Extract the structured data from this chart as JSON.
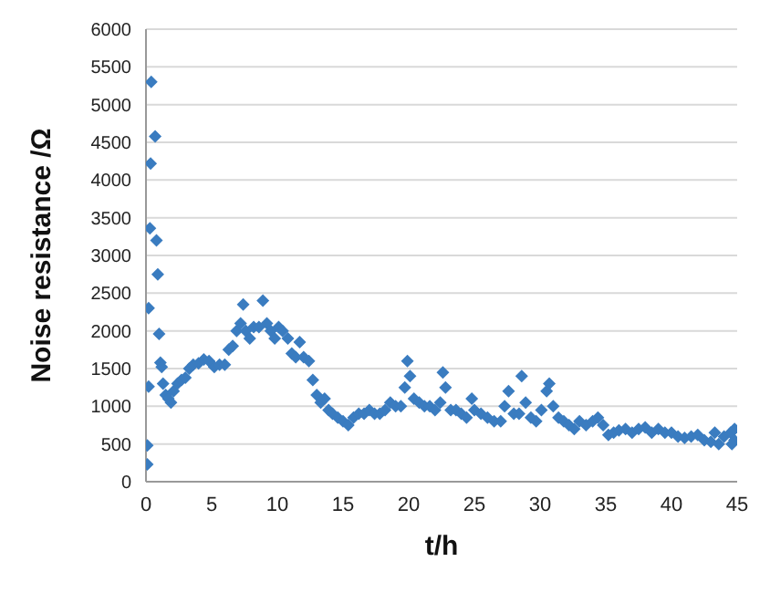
{
  "chart_data": {
    "type": "scatter",
    "xlabel": "t/h",
    "ylabel": "Noise resistance /Ω",
    "xlim": [
      0,
      45
    ],
    "xticks": [
      0,
      5,
      10,
      15,
      20,
      25,
      30,
      35,
      40,
      45
    ],
    "ylim": [
      0,
      6000
    ],
    "yticks": [
      0,
      500,
      1000,
      1500,
      2000,
      2500,
      3000,
      3500,
      4000,
      4500,
      5000,
      5500,
      6000
    ],
    "grid": "y",
    "marker": "diamond",
    "legend": false,
    "series": [
      {
        "color": "#3a7cc0",
        "x": [
          0.1,
          0.1,
          0.2,
          0.2,
          0.3,
          0.35,
          0.4,
          0.7,
          0.8,
          0.9,
          1.0,
          1.1,
          1.2,
          1.3,
          1.5,
          1.7,
          1.9,
          2.1,
          2.4,
          2.7,
          3.0,
          3.3,
          3.6,
          4.0,
          4.4,
          4.8,
          5.2,
          5.6,
          6.0,
          6.3,
          6.6,
          6.9,
          7.2,
          7.4,
          7.6,
          7.9,
          8.2,
          8.6,
          8.9,
          9.2,
          9.5,
          9.8,
          10.1,
          10.4,
          10.8,
          11.1,
          11.4,
          11.7,
          12.0,
          12.4,
          12.7,
          13.0,
          13.3,
          13.6,
          13.9,
          14.2,
          14.6,
          15.0,
          15.4,
          15.8,
          16.2,
          16.6,
          17.0,
          17.4,
          17.8,
          18.2,
          18.6,
          19.0,
          19.4,
          19.7,
          19.9,
          20.1,
          20.4,
          20.8,
          21.2,
          21.6,
          22.0,
          22.4,
          22.6,
          22.8,
          23.2,
          23.6,
          24.0,
          24.4,
          24.8,
          25.0,
          25.5,
          26.0,
          26.5,
          27.0,
          27.3,
          27.6,
          28.0,
          28.4,
          28.6,
          28.9,
          29.3,
          29.7,
          30.1,
          30.5,
          30.7,
          31.0,
          31.4,
          31.8,
          32.2,
          32.6,
          33.0,
          33.5,
          34.0,
          34.4,
          34.8,
          35.2,
          35.6,
          36.0,
          36.5,
          37.0,
          37.5,
          38.0,
          38.5,
          39.0,
          39.5,
          40.0,
          40.5,
          41.0,
          41.5,
          42.0,
          42.5,
          43.0,
          43.3,
          43.6,
          44.0,
          44.5,
          44.8,
          44.8,
          44.6
        ],
        "values": [
          230,
          480,
          1260,
          2300,
          3360,
          4220,
          5300,
          4580,
          3200,
          2750,
          1960,
          1580,
          1520,
          1300,
          1150,
          1100,
          1050,
          1200,
          1300,
          1350,
          1380,
          1500,
          1550,
          1570,
          1620,
          1600,
          1520,
          1550,
          1550,
          1750,
          1800,
          2000,
          2100,
          2350,
          2000,
          1900,
          2050,
          2050,
          2400,
          2100,
          2000,
          1900,
          2050,
          2000,
          1900,
          1700,
          1650,
          1850,
          1650,
          1600,
          1350,
          1150,
          1050,
          1100,
          950,
          900,
          850,
          800,
          750,
          850,
          900,
          900,
          950,
          900,
          900,
          950,
          1050,
          1000,
          1000,
          1250,
          1600,
          1400,
          1100,
          1050,
          1000,
          1000,
          950,
          1050,
          1450,
          1250,
          950,
          950,
          900,
          850,
          1100,
          950,
          900,
          850,
          800,
          800,
          1000,
          1200,
          900,
          900,
          1400,
          1050,
          850,
          800,
          950,
          1200,
          1300,
          1000,
          850,
          800,
          750,
          700,
          800,
          750,
          800,
          850,
          750,
          620,
          650,
          680,
          700,
          650,
          700,
          720,
          650,
          700,
          650,
          650,
          600,
          580,
          600,
          620,
          550,
          530,
          650,
          500,
          600,
          650,
          700,
          550,
          500
        ]
      }
    ]
  }
}
